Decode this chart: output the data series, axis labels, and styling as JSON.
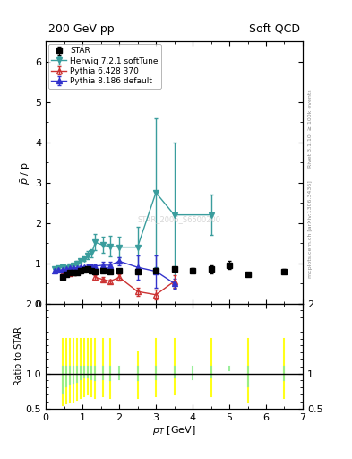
{
  "title_left": "200 GeV pp",
  "title_right": "Soft QCD",
  "ylabel_main": "$\\bar{p}$ / p",
  "ylabel_ratio": "Ratio to STAR",
  "xlabel": "$p_T$ [GeV]",
  "right_label_top": "Rivet 3.1.10, ≥ 100k events",
  "right_label_bot": "mcplots.cern.ch [arXiv:1306.3436]",
  "watermark": "STAR_2006_S6500200",
  "star_x": [
    0.45,
    0.55,
    0.65,
    0.75,
    0.85,
    0.95,
    1.05,
    1.15,
    1.25,
    1.35,
    1.55,
    1.75,
    2.0,
    2.5,
    3.0,
    3.5,
    4.0,
    4.5,
    5.0,
    5.5,
    6.5
  ],
  "star_y": [
    0.65,
    0.73,
    0.76,
    0.77,
    0.78,
    0.82,
    0.84,
    0.85,
    0.82,
    0.8,
    0.82,
    0.8,
    0.82,
    0.8,
    0.82,
    0.85,
    0.82,
    0.85,
    0.95,
    0.72,
    0.8
  ],
  "star_yerr": [
    0.02,
    0.02,
    0.02,
    0.02,
    0.02,
    0.02,
    0.02,
    0.02,
    0.02,
    0.02,
    0.03,
    0.03,
    0.04,
    0.05,
    0.05,
    0.05,
    0.06,
    0.1,
    0.1,
    0.05,
    0.05
  ],
  "herwig_x": [
    0.25,
    0.35,
    0.45,
    0.55,
    0.65,
    0.75,
    0.85,
    0.95,
    1.05,
    1.15,
    1.25,
    1.35,
    1.55,
    1.75,
    2.0,
    2.5,
    3.0,
    3.5,
    4.5
  ],
  "herwig_y": [
    0.85,
    0.88,
    0.9,
    0.88,
    0.92,
    0.95,
    1.0,
    1.05,
    1.1,
    1.2,
    1.25,
    1.52,
    1.45,
    1.42,
    1.4,
    1.4,
    2.75,
    2.2,
    2.2
  ],
  "herwig_yerr": [
    0.05,
    0.05,
    0.05,
    0.05,
    0.05,
    0.05,
    0.05,
    0.05,
    0.05,
    0.1,
    0.1,
    0.2,
    0.2,
    0.25,
    0.25,
    0.5,
    1.85,
    1.8,
    0.5
  ],
  "herwig_color": "#3a9d9d",
  "pythia6_x": [
    0.45,
    0.55,
    0.65,
    0.75,
    0.85,
    0.95,
    1.05,
    1.15,
    1.25,
    1.35,
    1.55,
    1.75,
    2.0,
    2.5,
    3.0,
    3.5
  ],
  "pythia6_y": [
    0.75,
    0.75,
    0.75,
    0.78,
    0.8,
    0.83,
    0.88,
    0.9,
    0.85,
    0.65,
    0.6,
    0.55,
    0.65,
    0.3,
    0.22,
    0.55
  ],
  "pythia6_yerr": [
    0.03,
    0.03,
    0.03,
    0.03,
    0.03,
    0.03,
    0.03,
    0.03,
    0.03,
    0.05,
    0.05,
    0.05,
    0.08,
    0.1,
    0.12,
    0.15
  ],
  "pythia6_color": "#cc3333",
  "pythia8_x": [
    0.25,
    0.35,
    0.45,
    0.55,
    0.65,
    0.75,
    0.85,
    0.95,
    1.05,
    1.15,
    1.25,
    1.35,
    1.55,
    1.75,
    2.0,
    2.5,
    3.0,
    3.5
  ],
  "pythia8_y": [
    0.82,
    0.83,
    0.83,
    0.85,
    0.87,
    0.88,
    0.88,
    0.9,
    0.9,
    0.92,
    0.93,
    0.93,
    0.95,
    0.95,
    1.05,
    0.9,
    0.8,
    0.5
  ],
  "pythia8_yerr": [
    0.03,
    0.03,
    0.03,
    0.03,
    0.03,
    0.03,
    0.03,
    0.03,
    0.03,
    0.05,
    0.05,
    0.05,
    0.08,
    0.08,
    0.1,
    0.3,
    0.4,
    0.12
  ],
  "pythia8_color": "#3333cc",
  "ylim_main": [
    0,
    6.5
  ],
  "ylim_ratio": [
    0.5,
    2.0
  ],
  "xlim": [
    0,
    7.0
  ],
  "ratio_yellow_x": [
    0.45,
    0.55,
    0.65,
    0.75,
    0.85,
    0.95,
    1.05,
    1.15,
    1.25,
    1.35,
    1.55,
    1.75,
    2.5,
    3.0,
    3.5,
    4.5,
    5.5,
    6.5
  ],
  "ratio_yellow_lo": [
    0.55,
    0.57,
    0.58,
    0.6,
    0.62,
    0.65,
    0.68,
    0.7,
    0.67,
    0.65,
    0.67,
    0.65,
    0.65,
    0.67,
    0.7,
    0.67,
    0.58,
    0.65
  ],
  "ratio_yellow_hi": [
    1.5,
    1.5,
    1.5,
    1.5,
    1.5,
    1.5,
    1.5,
    1.5,
    1.5,
    1.5,
    1.5,
    1.5,
    1.3,
    1.5,
    1.5,
    1.5,
    1.5,
    1.5
  ],
  "ratio_green_x": [
    0.45,
    0.55,
    0.65,
    0.75,
    0.85,
    0.95,
    1.05,
    1.15,
    1.25,
    1.35,
    1.55,
    1.75,
    2.0,
    2.5,
    3.0,
    3.5,
    4.0,
    4.5,
    5.0,
    5.5,
    6.5
  ],
  "ratio_green_lo": [
    0.72,
    0.82,
    0.85,
    0.87,
    0.88,
    0.92,
    0.94,
    0.95,
    0.92,
    0.9,
    0.92,
    0.9,
    0.92,
    0.9,
    0.92,
    0.95,
    0.92,
    0.95,
    1.05,
    0.82,
    0.9
  ],
  "ratio_green_hi": [
    1.1,
    1.1,
    1.1,
    1.1,
    1.1,
    1.1,
    1.1,
    1.1,
    1.1,
    1.1,
    1.1,
    1.1,
    1.1,
    1.1,
    1.1,
    1.1,
    1.1,
    1.1,
    1.1,
    1.1,
    1.1
  ]
}
